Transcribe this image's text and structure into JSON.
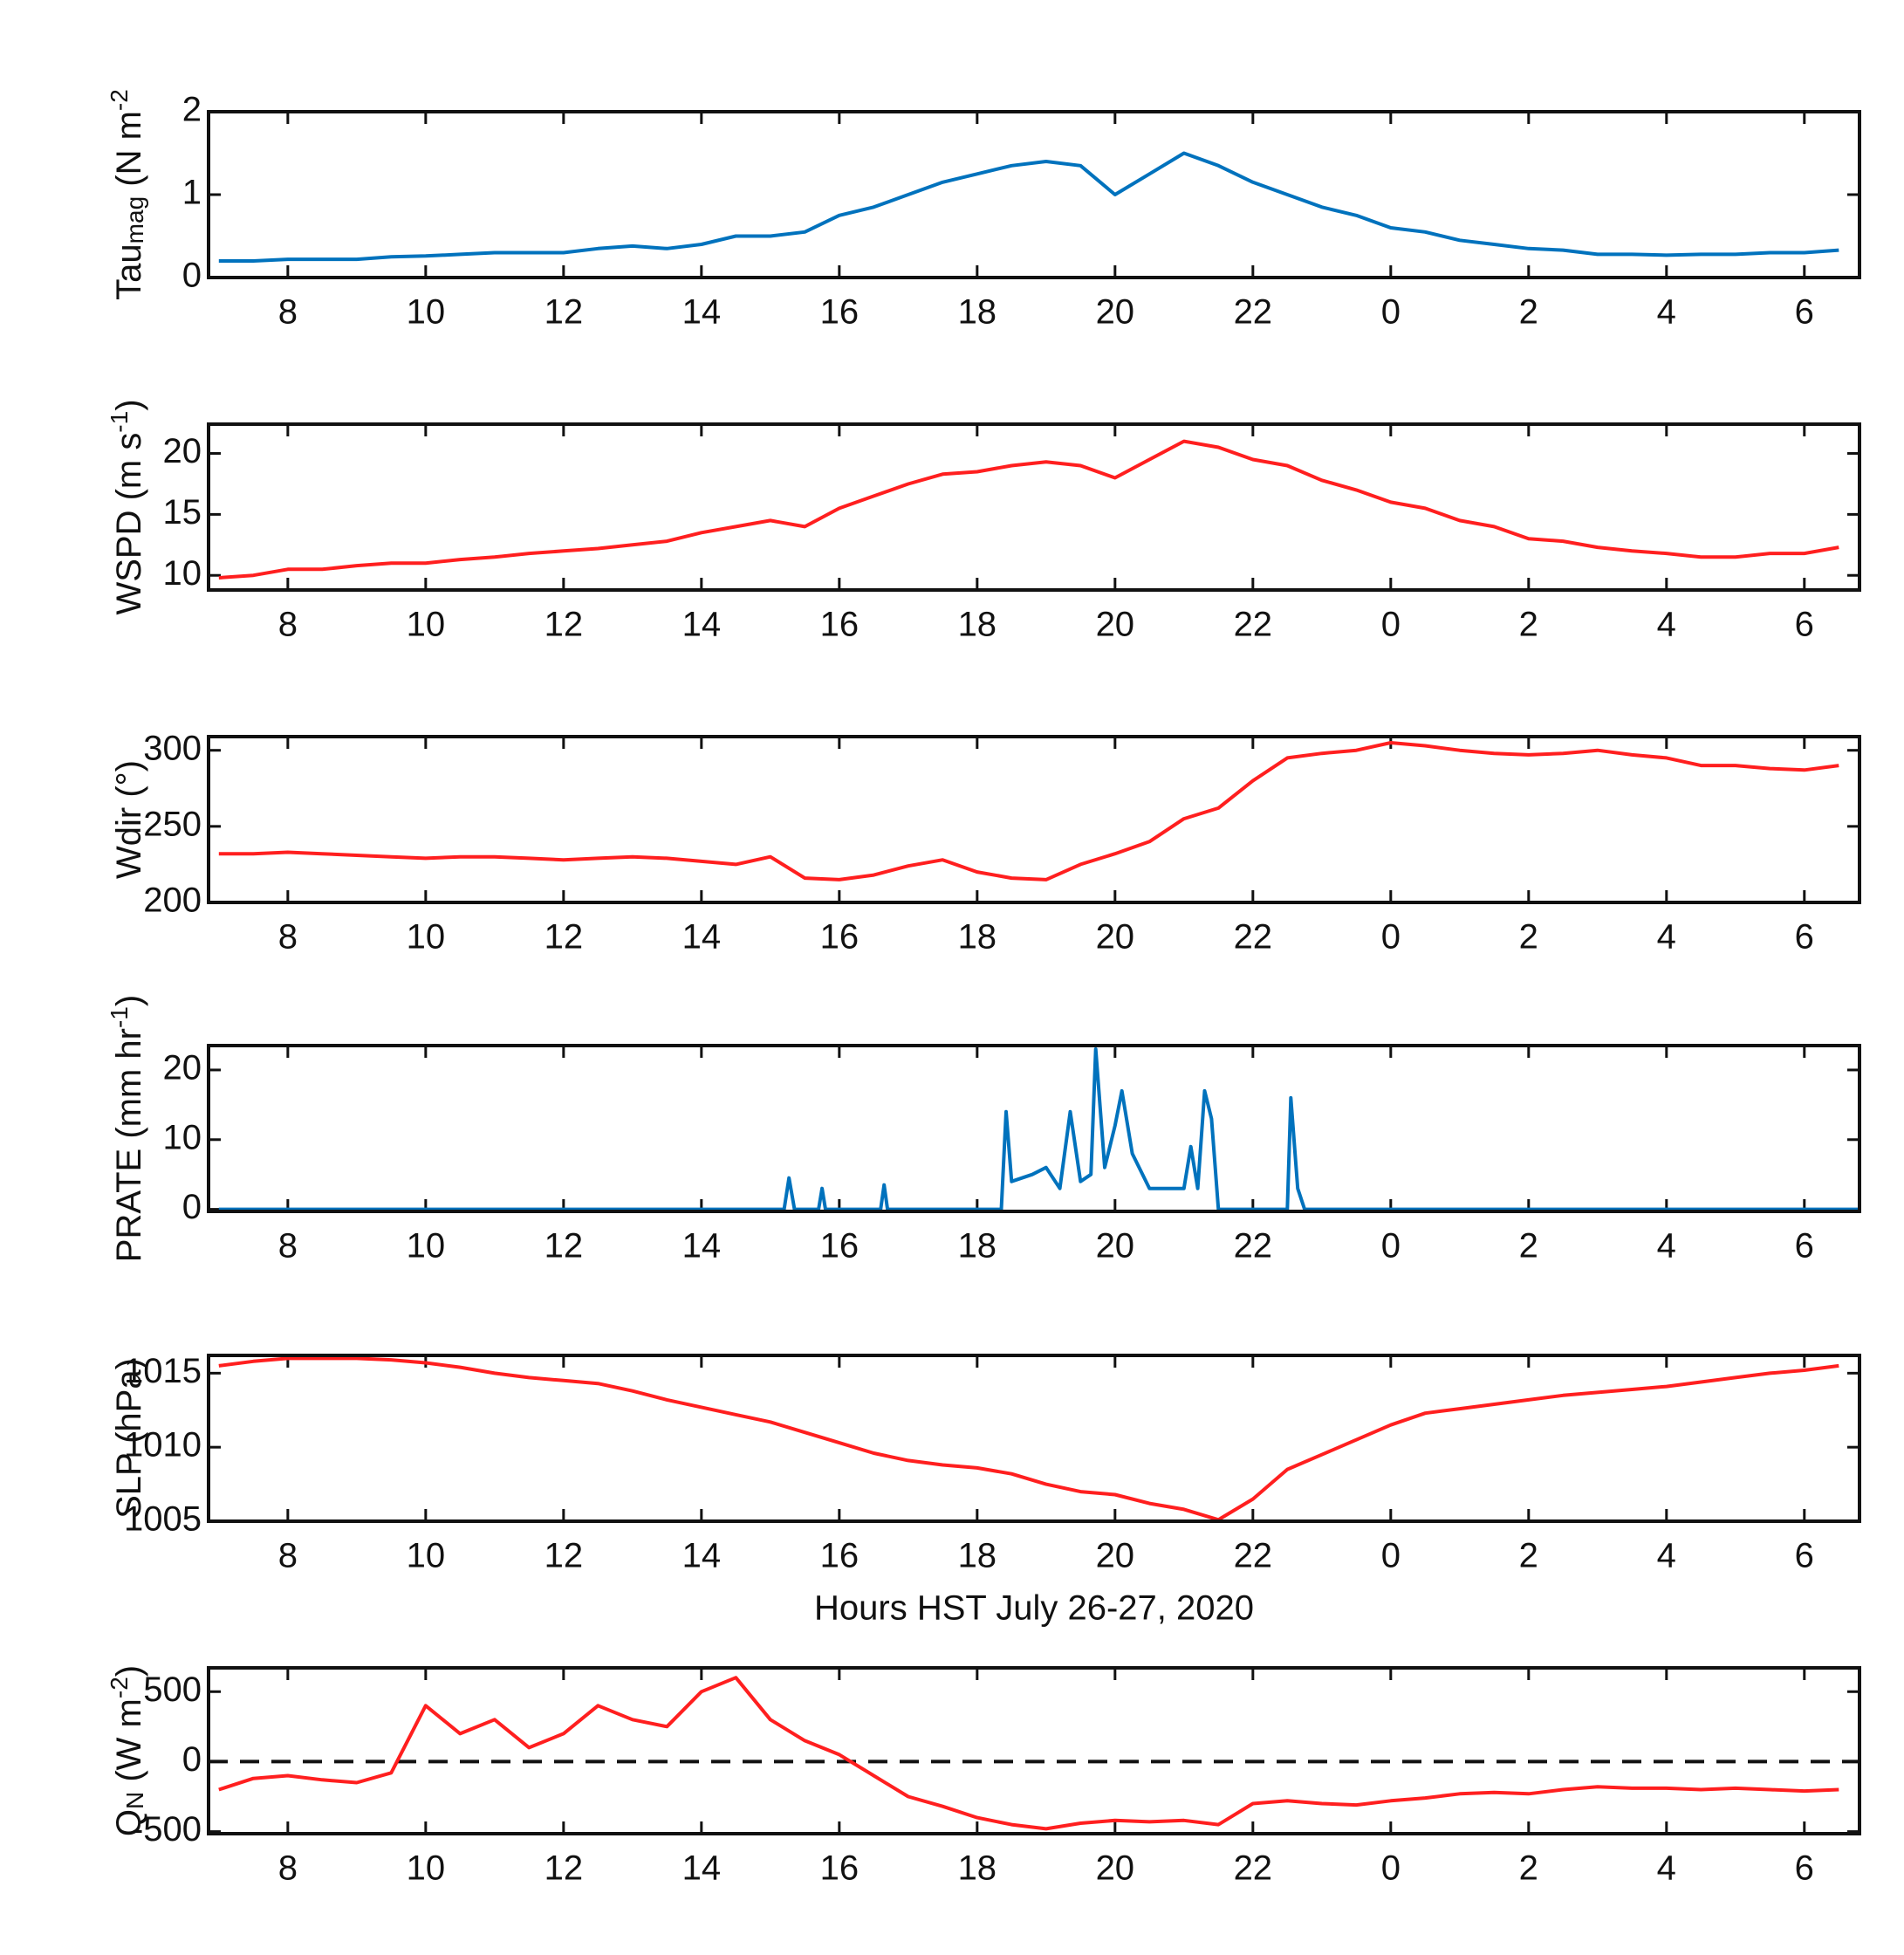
{
  "chart_data": [
    {
      "type": "line",
      "ylabel": [
        {
          "text": "Tau",
          "shift": "base"
        },
        {
          "text": "mag",
          "shift": "sub"
        },
        {
          "text": " (N m",
          "shift": "base"
        },
        {
          "text": "-2",
          "shift": "super"
        }
      ],
      "x": [
        7,
        7.5,
        8,
        8.5,
        9,
        9.5,
        10,
        10.5,
        11,
        11.5,
        12,
        12.5,
        13,
        13.5,
        14,
        14.5,
        15,
        15.5,
        16,
        16.5,
        17,
        17.5,
        18,
        18.5,
        19,
        19.5,
        20,
        20.5,
        21,
        21.5,
        22,
        22.5,
        23,
        23.5,
        24,
        24.5,
        25,
        25.5,
        26,
        26.5,
        27,
        27.5,
        28,
        28.5,
        29,
        29.5,
        30,
        30.5
      ],
      "series": [
        {
          "color": "#0072BD",
          "values": [
            0.2,
            0.2,
            0.22,
            0.22,
            0.22,
            0.25,
            0.26,
            0.28,
            0.3,
            0.3,
            0.3,
            0.35,
            0.38,
            0.35,
            0.4,
            0.5,
            0.5,
            0.55,
            0.75,
            0.85,
            1.0,
            1.15,
            1.25,
            1.35,
            1.4,
            1.35,
            1.0,
            1.25,
            1.5,
            1.35,
            1.15,
            1.0,
            0.85,
            0.75,
            0.6,
            0.55,
            0.45,
            0.4,
            0.35,
            0.33,
            0.28,
            0.28,
            0.27,
            0.28,
            0.28,
            0.3,
            0.3,
            0.33
          ]
        }
      ],
      "xlim": [
        6.85,
        30.8
      ],
      "xticks": [
        8,
        10,
        12,
        14,
        16,
        18,
        20,
        22,
        {
          "value": 24,
          "label": "0"
        },
        {
          "value": 26,
          "label": "2"
        },
        {
          "value": 28,
          "label": "4"
        },
        {
          "value": 30,
          "label": "6"
        }
      ],
      "ylim": [
        0,
        2
      ],
      "yticks": [
        0,
        1,
        2
      ]
    },
    {
      "type": "line",
      "ylabel": [
        {
          "text": "WSPD (m s",
          "shift": "base"
        },
        {
          "text": "-1",
          "shift": "super"
        },
        {
          "text": ")",
          "shift": "base"
        }
      ],
      "x": [
        7,
        7.5,
        8,
        8.5,
        9,
        9.5,
        10,
        10.5,
        11,
        11.5,
        12,
        12.5,
        13,
        13.5,
        14,
        14.5,
        15,
        15.5,
        16,
        16.5,
        17,
        17.5,
        18,
        18.5,
        19,
        19.5,
        20,
        20.5,
        21,
        21.5,
        22,
        22.5,
        23,
        23.5,
        24,
        24.5,
        25,
        25.5,
        26,
        26.5,
        27,
        27.5,
        28,
        28.5,
        29,
        29.5,
        30,
        30.5
      ],
      "series": [
        {
          "color": "#FF1F1F",
          "values": [
            9.8,
            10,
            10.5,
            10.5,
            10.8,
            11,
            11,
            11.3,
            11.5,
            11.8,
            12,
            12.2,
            12.5,
            12.8,
            13.5,
            14,
            14.5,
            14,
            15.5,
            16.5,
            17.5,
            18.3,
            18.5,
            19,
            19.3,
            19,
            18,
            19.5,
            21,
            20.5,
            19.5,
            19,
            17.8,
            17,
            16,
            15.5,
            14.5,
            14,
            13,
            12.8,
            12.3,
            12,
            11.8,
            11.5,
            11.5,
            11.8,
            11.8,
            12.3
          ]
        }
      ],
      "xlim": [
        6.85,
        30.8
      ],
      "xticks": [
        8,
        10,
        12,
        14,
        16,
        18,
        20,
        22,
        {
          "value": 24,
          "label": "0"
        },
        {
          "value": 26,
          "label": "2"
        },
        {
          "value": 28,
          "label": "4"
        },
        {
          "value": 30,
          "label": "6"
        }
      ],
      "ylim": [
        8.8,
        22.4
      ],
      "yticks": [
        10,
        15,
        20
      ]
    },
    {
      "type": "line",
      "ylabel": [
        {
          "text": "Wdir (°)",
          "shift": "base"
        }
      ],
      "x": [
        7,
        7.5,
        8,
        8.5,
        9,
        9.5,
        10,
        10.5,
        11,
        11.5,
        12,
        12.5,
        13,
        13.5,
        14,
        14.5,
        15,
        15.5,
        16,
        16.5,
        17,
        17.5,
        18,
        18.5,
        19,
        19.5,
        20,
        20.5,
        21,
        21.5,
        22,
        22.5,
        23,
        23.5,
        24,
        24.5,
        25,
        25.5,
        26,
        26.5,
        27,
        27.5,
        28,
        28.5,
        29,
        29.5,
        30,
        30.5
      ],
      "series": [
        {
          "color": "#FF1F1F",
          "values": [
            232,
            232,
            233,
            232,
            231,
            230,
            229,
            230,
            230,
            229,
            228,
            229,
            230,
            229,
            227,
            225,
            230,
            216,
            215,
            218,
            224,
            228,
            220,
            216,
            215,
            225,
            232,
            240,
            255,
            262,
            280,
            295,
            298,
            300,
            305,
            303,
            300,
            298,
            297,
            298,
            300,
            297,
            295,
            290,
            290,
            288,
            287,
            290
          ]
        }
      ],
      "xlim": [
        6.85,
        30.8
      ],
      "xticks": [
        8,
        10,
        12,
        14,
        16,
        18,
        20,
        22,
        {
          "value": 24,
          "label": "0"
        },
        {
          "value": 26,
          "label": "2"
        },
        {
          "value": 28,
          "label": "4"
        },
        {
          "value": 30,
          "label": "6"
        }
      ],
      "ylim": [
        200,
        309
      ],
      "yticks": [
        200,
        250,
        300
      ]
    },
    {
      "type": "line",
      "ylabel": [
        {
          "text": "PRATE  (mm hr",
          "shift": "base"
        },
        {
          "text": "-1",
          "shift": "super"
        },
        {
          "text": ")",
          "shift": "base"
        }
      ],
      "x": [
        7,
        15.2,
        15.27,
        15.35,
        15.7,
        15.75,
        15.8,
        16.6,
        16.65,
        16.7,
        18.35,
        18.42,
        18.5,
        18.8,
        19,
        19.2,
        19.35,
        19.5,
        19.65,
        19.72,
        19.85,
        20,
        20.1,
        20.25,
        20.5,
        20.8,
        21,
        21.1,
        21.2,
        21.3,
        21.4,
        21.5,
        22.5,
        22.55,
        22.65,
        22.75,
        30.8
      ],
      "series": [
        {
          "color": "#0072BD",
          "values": [
            0,
            0,
            4.5,
            0,
            0,
            3,
            0,
            0,
            3.5,
            0,
            0,
            14,
            4,
            5,
            6,
            3,
            14,
            4,
            5,
            23,
            6,
            12,
            17,
            8,
            3,
            3,
            3,
            9,
            3,
            17,
            13,
            0,
            0,
            16,
            3,
            0,
            0
          ]
        }
      ],
      "xlim": [
        6.85,
        30.8
      ],
      "xticks": [
        8,
        10,
        12,
        14,
        16,
        18,
        20,
        22,
        {
          "value": 24,
          "label": "0"
        },
        {
          "value": 26,
          "label": "2"
        },
        {
          "value": 28,
          "label": "4"
        },
        {
          "value": 30,
          "label": "6"
        }
      ],
      "ylim": [
        -0.3,
        23.5
      ],
      "yticks": [
        0,
        10,
        20
      ]
    },
    {
      "type": "line",
      "ylabel": [
        {
          "text": "SLP (hPa)",
          "shift": "base"
        }
      ],
      "xlabel": "Hours HST July 26-27, 2020",
      "x": [
        7,
        7.5,
        8,
        8.5,
        9,
        9.5,
        10,
        10.5,
        11,
        11.5,
        12,
        12.5,
        13,
        13.5,
        14,
        14.5,
        15,
        15.5,
        16,
        16.5,
        17,
        17.5,
        18,
        18.5,
        19,
        19.5,
        20,
        20.5,
        21,
        21.5,
        22,
        22.5,
        23,
        23.5,
        24,
        24.5,
        25,
        25.5,
        26,
        26.5,
        27,
        27.5,
        28,
        28.5,
        29,
        29.5,
        30,
        30.5
      ],
      "series": [
        {
          "color": "#FF1F1F",
          "values": [
            1015.5,
            1015.8,
            1016,
            1016,
            1016,
            1015.9,
            1015.7,
            1015.4,
            1015,
            1014.7,
            1014.5,
            1014.3,
            1013.8,
            1013.2,
            1012.7,
            1012.2,
            1011.7,
            1011,
            1010.3,
            1009.6,
            1009.1,
            1008.8,
            1008.6,
            1008.2,
            1007.5,
            1007,
            1006.8,
            1006.2,
            1005.8,
            1005.1,
            1006.5,
            1008.5,
            1009.5,
            1010.5,
            1011.5,
            1012.3,
            1012.6,
            1012.9,
            1013.2,
            1013.5,
            1013.7,
            1013.9,
            1014.1,
            1014.4,
            1014.7,
            1015,
            1015.2,
            1015.5
          ]
        }
      ],
      "xlim": [
        6.85,
        30.8
      ],
      "xticks": [
        8,
        10,
        12,
        14,
        16,
        18,
        20,
        22,
        {
          "value": 24,
          "label": "0"
        },
        {
          "value": 26,
          "label": "2"
        },
        {
          "value": 28,
          "label": "4"
        },
        {
          "value": 30,
          "label": "6"
        }
      ],
      "ylim": [
        1005,
        1016.2
      ],
      "yticks": [
        1005,
        1010,
        1015
      ]
    },
    {
      "type": "line",
      "ylabel": [
        {
          "text": "Q",
          "shift": "base"
        },
        {
          "text": "N",
          "shift": "sub"
        },
        {
          "text": " (W m",
          "shift": "base"
        },
        {
          "text": "-2",
          "shift": "super"
        },
        {
          "text": ")",
          "shift": "base"
        }
      ],
      "x": [
        7,
        7.5,
        8,
        8.5,
        9,
        9.5,
        10,
        10.5,
        11,
        11.5,
        12,
        12.5,
        13,
        13.5,
        14,
        14.5,
        15,
        15.5,
        16,
        16.5,
        17,
        17.5,
        18,
        18.5,
        19,
        19.5,
        20,
        20.5,
        21,
        21.5,
        22,
        22.5,
        23,
        23.5,
        24,
        24.5,
        25,
        25.5,
        26,
        26.5,
        27,
        27.5,
        28,
        28.5,
        29,
        29.5,
        30,
        30.5
      ],
      "series": [
        {
          "color": "#FF1F1F",
          "values": [
            -200,
            -120,
            -100,
            -130,
            -150,
            -80,
            400,
            200,
            300,
            100,
            200,
            400,
            300,
            250,
            500,
            600,
            300,
            150,
            50,
            -100,
            -250,
            -320,
            -400,
            -450,
            -480,
            -440,
            -420,
            -430,
            -420,
            -450,
            -300,
            -280,
            -300,
            -310,
            -280,
            -260,
            -230,
            -220,
            -230,
            -200,
            -180,
            -190,
            -190,
            -200,
            -190,
            -200,
            -210,
            -200
          ]
        }
      ],
      "xlim": [
        6.85,
        30.8
      ],
      "xticks": [
        8,
        10,
        12,
        14,
        16,
        18,
        20,
        22,
        {
          "value": 24,
          "label": "0"
        },
        {
          "value": 26,
          "label": "2"
        },
        {
          "value": 28,
          "label": "4"
        },
        {
          "value": 30,
          "label": "6"
        }
      ],
      "ylim": [
        -515,
        670
      ],
      "yticks": [
        -500,
        0,
        500
      ],
      "hline": 0,
      "hline_dashed": true
    }
  ]
}
